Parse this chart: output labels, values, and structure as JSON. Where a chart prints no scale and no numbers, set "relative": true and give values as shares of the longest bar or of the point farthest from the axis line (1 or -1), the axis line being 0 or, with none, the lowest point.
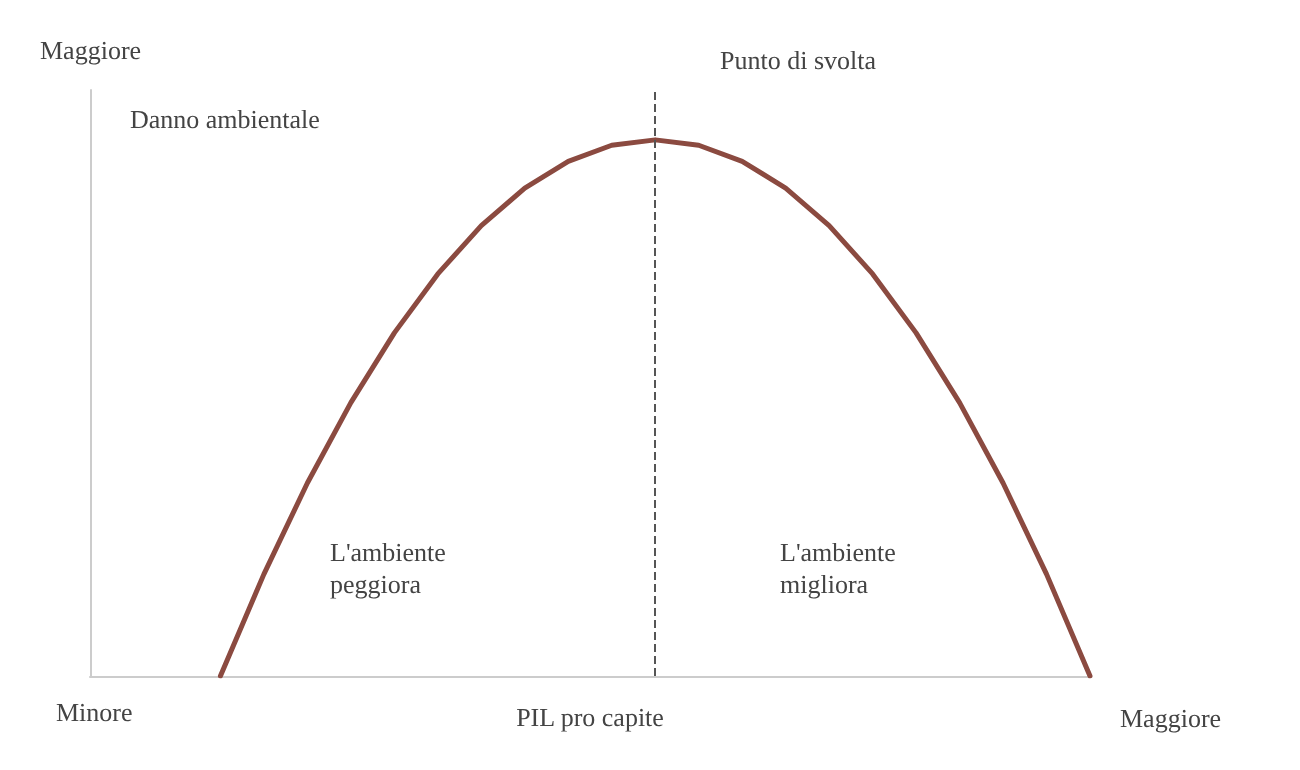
{
  "chart_data": {
    "type": "line",
    "relative": true,
    "xlabel": "PIL pro capite",
    "ylabel": "Danno ambientale",
    "categories": [
      null,
      null,
      null,
      null,
      null,
      null,
      null,
      null,
      null,
      null,
      null,
      null,
      null,
      null,
      null,
      null,
      null,
      null,
      null,
      null,
      null,
      null,
      null,
      null
    ],
    "series": [
      {
        "color": "#8b4a40",
        "values": [
          null,
          null,
          null,
          0,
          0.19,
          0.36,
          0.51,
          0.64,
          0.75,
          0.84,
          0.91,
          0.96,
          0.99,
          1,
          0.99,
          0.96,
          0.91,
          0.84,
          0.75,
          0.64,
          0.51,
          0.36,
          0.19,
          0
        ]
      }
    ],
    "annotations": [
      "Maggiore",
      "Minore",
      "Maggiore",
      "L'ambiente\npeggiora",
      "L'ambiente\nmigliora",
      "Punto di svolta"
    ],
    "grid": false,
    "marker": "none",
    "line_style": "solid"
  }
}
